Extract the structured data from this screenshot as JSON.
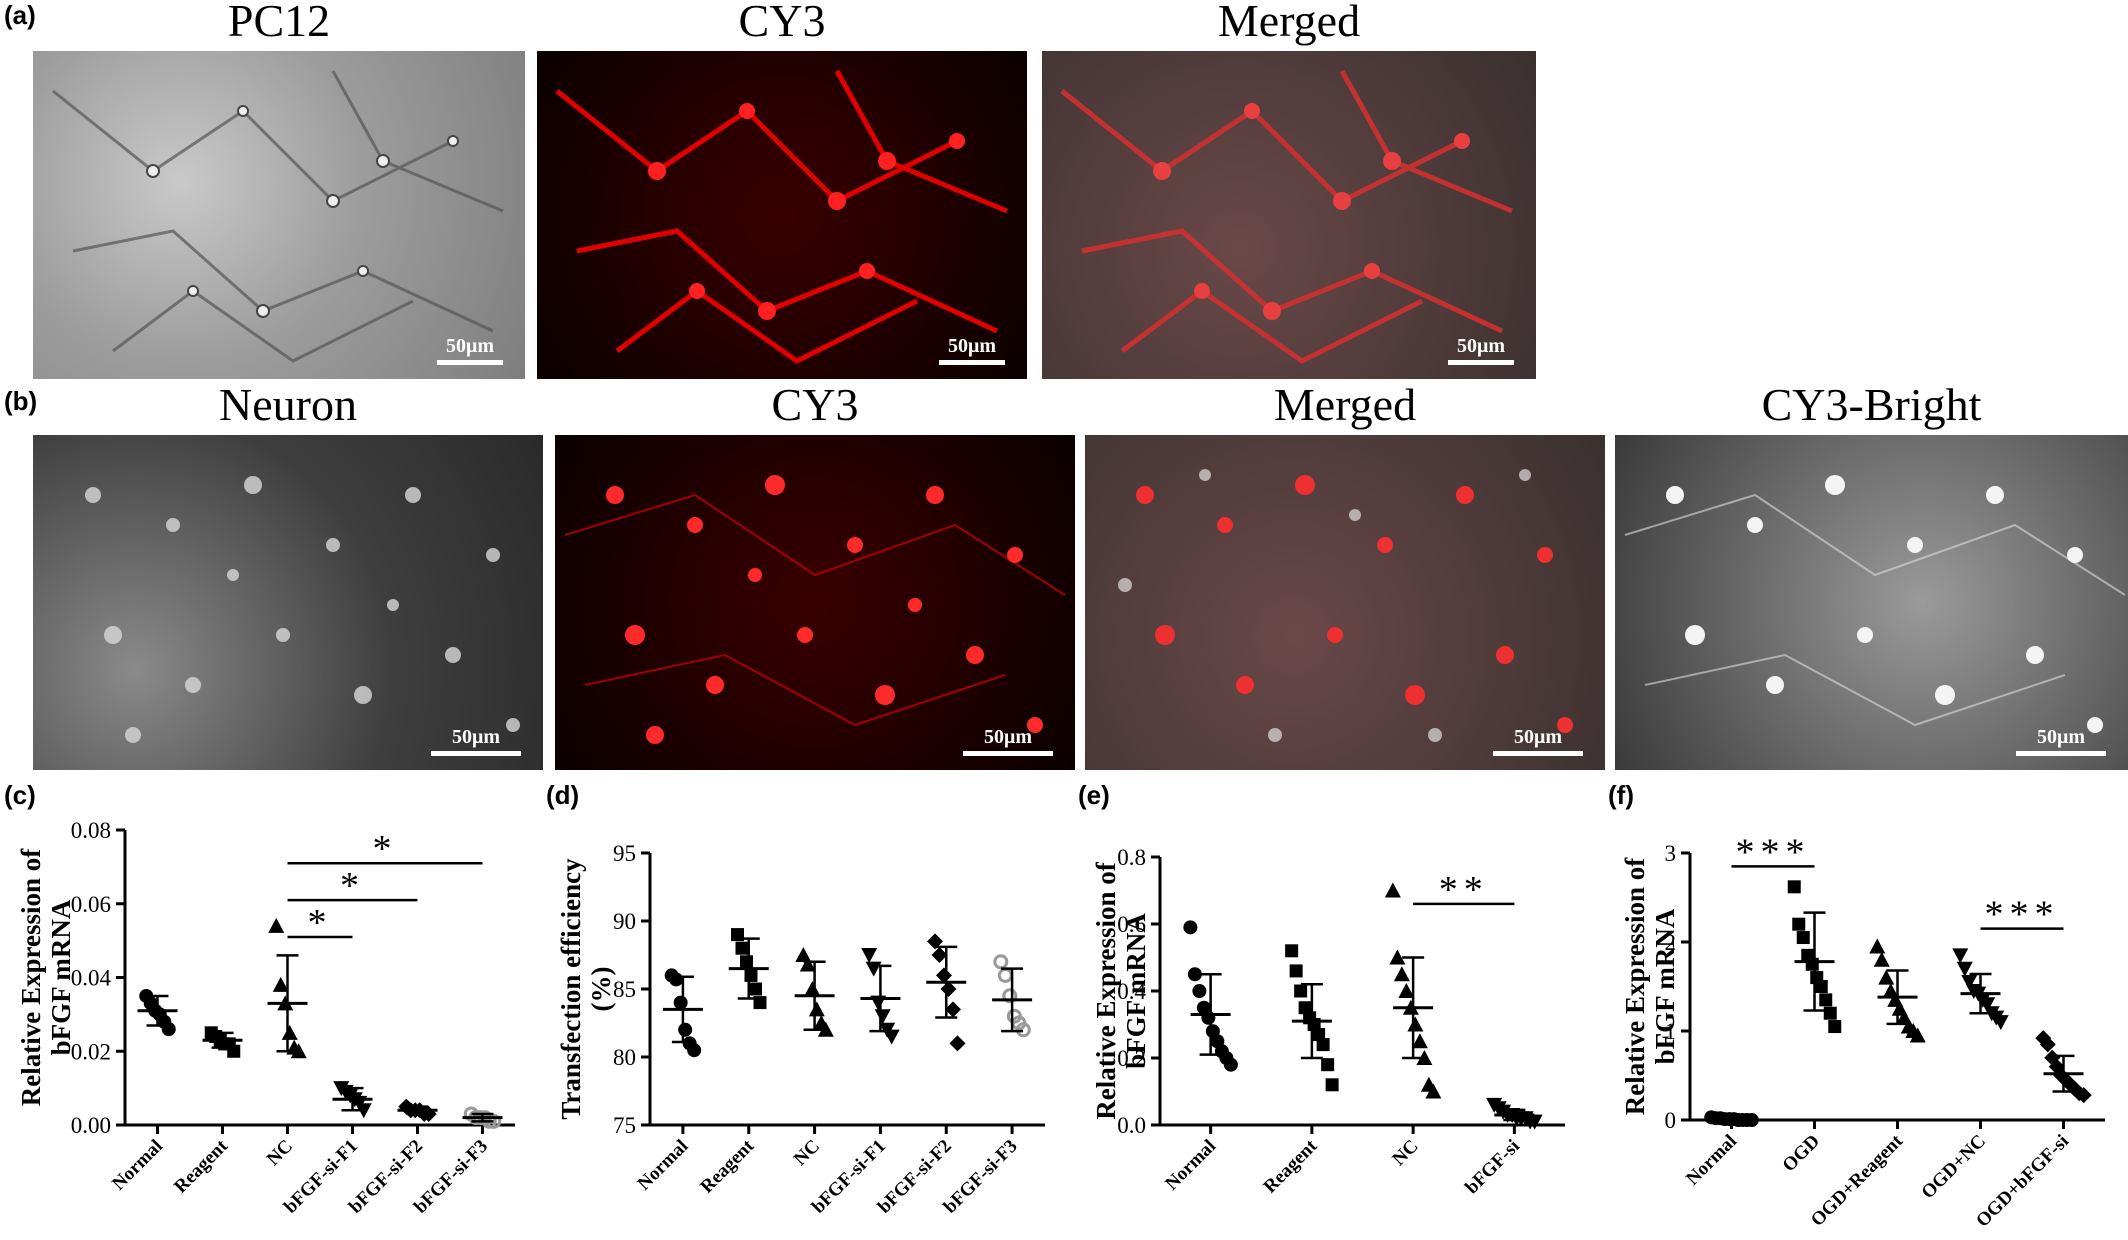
{
  "labels": {
    "a": "(a)",
    "b": "(b)",
    "c": "(c)",
    "d": "(d)",
    "e": "(e)",
    "f": "(f)"
  },
  "row_a": {
    "titles": [
      "PC12",
      "CY3",
      "Merged"
    ],
    "scale_bar": "50μm"
  },
  "row_b": {
    "titles": [
      "Neuron",
      "CY3",
      "Merged",
      "CY3-Bright"
    ],
    "scale_bar": "50μm"
  },
  "chart_data": [
    {
      "panel": "c",
      "type": "scatter",
      "ylabel": "Relative Expression of bFGF mRNA",
      "ylim": [
        0,
        0.08
      ],
      "yticks": [
        "0.00",
        "0.02",
        "0.04",
        "0.06",
        "0.08"
      ],
      "categories": [
        "Normal",
        "Reagent",
        "NC",
        "bFGF-si-F1",
        "bFGF-si-F2",
        "bFGF-si-F3"
      ],
      "markers": [
        "circle",
        "square",
        "triangle-up",
        "triangle-down",
        "diamond",
        "circle-open"
      ],
      "mean": [
        0.031,
        0.023,
        0.033,
        0.007,
        0.004,
        0.002
      ],
      "sd": [
        0.004,
        0.002,
        0.013,
        0.003,
        0.001,
        0.001
      ],
      "points": [
        [
          0.035,
          0.033,
          0.031,
          0.03,
          0.028,
          0.026
        ],
        [
          0.025,
          0.024,
          0.023,
          0.022,
          0.022,
          0.02
        ],
        [
          0.054,
          0.038,
          0.033,
          0.025,
          0.021,
          0.02
        ],
        [
          0.01,
          0.009,
          0.008,
          0.007,
          0.006,
          0.004
        ],
        [
          0.005,
          0.004,
          0.004,
          0.004,
          0.003,
          0.003
        ],
        [
          0.003,
          0.002,
          0.002,
          0.002,
          0.001,
          0.001
        ]
      ],
      "significance": [
        {
          "from": 2,
          "to": 3,
          "label": "*",
          "y": 0.051
        },
        {
          "from": 2,
          "to": 4,
          "label": "*",
          "y": 0.061
        },
        {
          "from": 2,
          "to": 5,
          "label": "*",
          "y": 0.071
        }
      ]
    },
    {
      "panel": "d",
      "type": "scatter",
      "ylabel": "Transfection efficiency (%)",
      "ylim": [
        75,
        95
      ],
      "yticks": [
        "75",
        "80",
        "85",
        "90",
        "95"
      ],
      "categories": [
        "Normal",
        "Reagent",
        "NC",
        "bFGF-si-F1",
        "bFGF-si-F2",
        "bFGF-si-F3"
      ],
      "markers": [
        "circle",
        "square",
        "triangle-up",
        "triangle-down",
        "diamond",
        "circle-open"
      ],
      "mean": [
        83.5,
        86.5,
        84.5,
        84.3,
        85.5,
        84.2
      ],
      "sd": [
        2.4,
        2.2,
        2.5,
        2.4,
        2.6,
        2.3
      ],
      "points": [
        [
          86.0,
          85.7,
          84.0,
          82.0,
          81.0,
          80.5
        ],
        [
          89.0,
          88.0,
          87.0,
          86.0,
          85.0,
          84.0
        ],
        [
          87.5,
          86.8,
          85.0,
          83.5,
          82.5,
          82.0
        ],
        [
          87.5,
          86.5,
          84.0,
          83.0,
          82.0,
          81.5
        ],
        [
          88.5,
          87.5,
          86.0,
          85.0,
          83.5,
          81.0
        ],
        [
          87.0,
          86.0,
          84.5,
          83.0,
          82.5,
          82.0
        ]
      ],
      "significance": []
    },
    {
      "panel": "e",
      "type": "scatter",
      "ylabel": "Relative Expression of bFGF mRNA",
      "ylim": [
        0,
        0.8
      ],
      "yticks": [
        "0.0",
        "0.2",
        "0.4",
        "0.6",
        "0.8"
      ],
      "categories": [
        "Normal",
        "Reagent",
        "NC",
        "bFGF-si"
      ],
      "markers": [
        "circle",
        "square",
        "triangle-up",
        "triangle-down"
      ],
      "mean": [
        0.33,
        0.31,
        0.35,
        0.03
      ],
      "sd": [
        0.12,
        0.11,
        0.15,
        0.015
      ],
      "points": [
        [
          0.59,
          0.45,
          0.4,
          0.35,
          0.32,
          0.28,
          0.25,
          0.22,
          0.2,
          0.18
        ],
        [
          0.52,
          0.46,
          0.4,
          0.35,
          0.32,
          0.3,
          0.27,
          0.24,
          0.18,
          0.12
        ],
        [
          0.7,
          0.5,
          0.45,
          0.4,
          0.35,
          0.3,
          0.25,
          0.2,
          0.12,
          0.1
        ],
        [
          0.06,
          0.05,
          0.04,
          0.03,
          0.03,
          0.02,
          0.02,
          0.02,
          0.01,
          0.01
        ]
      ],
      "significance": [
        {
          "from": 2,
          "to": 3,
          "label": "**",
          "y": 0.66
        }
      ]
    },
    {
      "panel": "f",
      "type": "scatter",
      "ylabel": "Relative Expression of bFGF mRNA",
      "ylim": [
        0,
        3
      ],
      "yticks": [
        "0",
        "1",
        "2",
        "3"
      ],
      "categories": [
        "Normal",
        "OGD",
        "OGD+Reagent",
        "OGD+NC",
        "OGD+bFGF-si"
      ],
      "markers": [
        "circle",
        "square",
        "triangle-up",
        "triangle-down",
        "diamond"
      ],
      "mean": [
        0.01,
        1.78,
        1.38,
        1.42,
        0.52
      ],
      "sd": [
        0.01,
        0.55,
        0.3,
        0.22,
        0.2
      ],
      "points": [
        [
          0.03,
          0.02,
          0.02,
          0.01,
          0.01,
          0.01,
          0.0,
          0.0,
          0.0,
          0.0
        ],
        [
          2.62,
          2.2,
          2.05,
          1.85,
          1.75,
          1.6,
          1.5,
          1.35,
          1.2,
          1.05
        ],
        [
          1.95,
          1.8,
          1.6,
          1.45,
          1.35,
          1.25,
          1.15,
          1.05,
          1.0,
          0.95
        ],
        [
          1.85,
          1.7,
          1.55,
          1.45,
          1.42,
          1.35,
          1.3,
          1.2,
          1.15,
          1.1
        ],
        [
          0.92,
          0.85,
          0.7,
          0.6,
          0.5,
          0.45,
          0.4,
          0.35,
          0.3,
          0.28
        ]
      ],
      "significance": [
        {
          "from": 0,
          "to": 1,
          "label": "***",
          "y": 2.85
        },
        {
          "from": 3,
          "to": 4,
          "label": "***",
          "y": 2.15
        }
      ]
    }
  ]
}
